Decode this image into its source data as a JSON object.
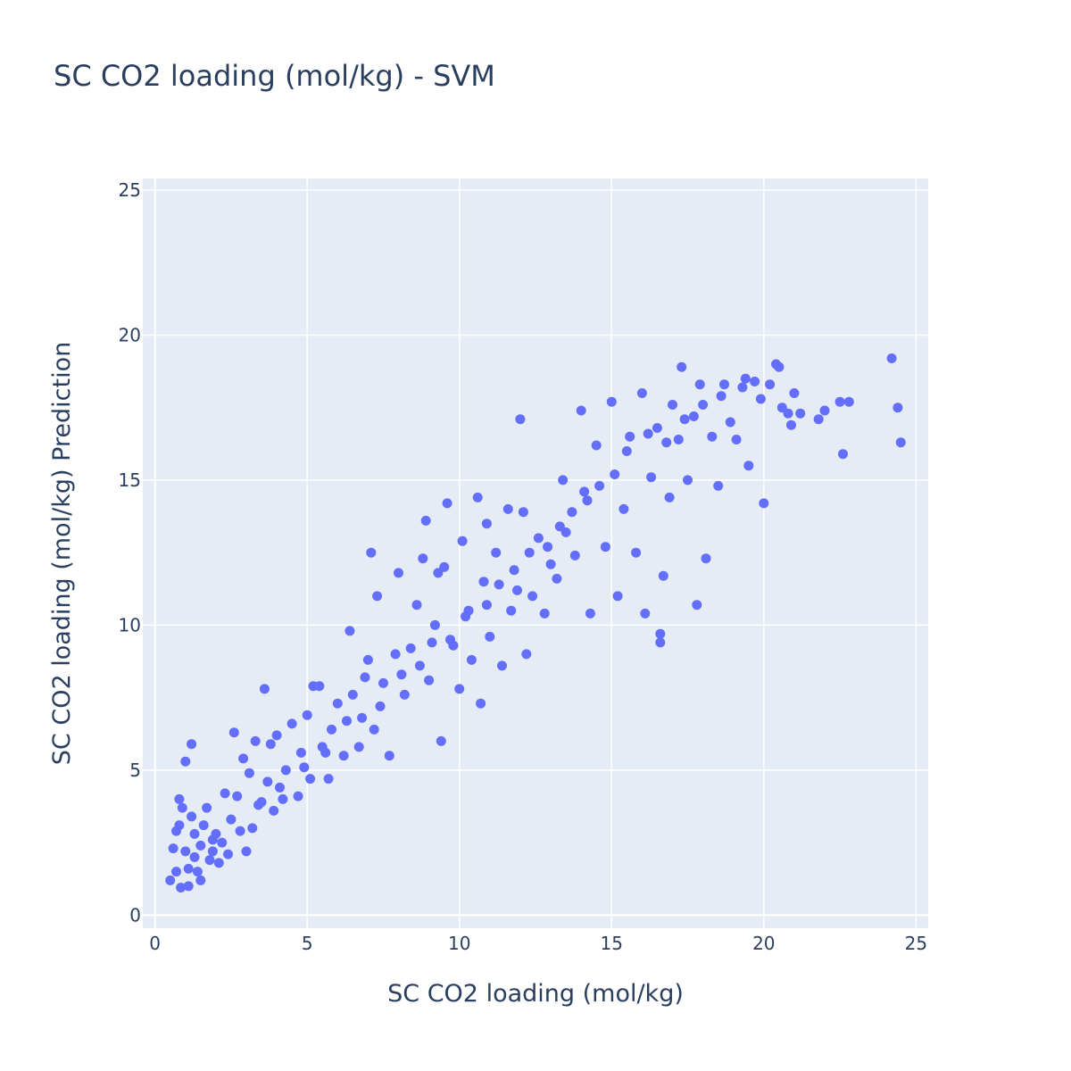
{
  "chart_data": {
    "type": "scatter",
    "title": "SC CO2 loading (mol/kg) - SVM",
    "xlabel": "SC CO2 loading (mol/kg)",
    "ylabel": "SC CO2 loading (mol/kg) Prediction",
    "xlim": [
      -0.4,
      25.4
    ],
    "ylim": [
      -0.45,
      25.4
    ],
    "x_ticks": [
      0,
      5,
      10,
      15,
      20,
      25
    ],
    "y_ticks": [
      0,
      5,
      10,
      15,
      20,
      25
    ],
    "grid": true,
    "legend": "none",
    "marker_color": "#636efa",
    "plot_background": "#e5ecf6",
    "series": [
      {
        "points": [
          [
            0.5,
            1.2
          ],
          [
            0.6,
            2.3
          ],
          [
            0.7,
            1.5
          ],
          [
            0.7,
            2.9
          ],
          [
            0.8,
            3.1
          ],
          [
            0.8,
            4.0
          ],
          [
            0.9,
            3.7
          ],
          [
            0.85,
            0.95
          ],
          [
            1.0,
            5.3
          ],
          [
            1.0,
            2.2
          ],
          [
            1.1,
            1.0
          ],
          [
            1.1,
            1.6
          ],
          [
            1.2,
            3.4
          ],
          [
            1.2,
            5.9
          ],
          [
            1.3,
            2.8
          ],
          [
            1.4,
            1.5
          ],
          [
            1.5,
            2.4
          ],
          [
            1.6,
            3.1
          ],
          [
            1.7,
            3.7
          ],
          [
            1.8,
            1.9
          ],
          [
            1.9,
            2.6
          ],
          [
            2.0,
            2.8
          ],
          [
            2.1,
            1.8
          ],
          [
            2.3,
            4.2
          ],
          [
            2.4,
            2.1
          ],
          [
            2.5,
            3.3
          ],
          [
            2.6,
            6.3
          ],
          [
            2.7,
            4.1
          ],
          [
            2.9,
            5.4
          ],
          [
            3.0,
            2.2
          ],
          [
            3.1,
            4.9
          ],
          [
            3.2,
            3.0
          ],
          [
            3.3,
            6.0
          ],
          [
            3.4,
            3.8
          ],
          [
            3.6,
            7.8
          ],
          [
            3.7,
            4.6
          ],
          [
            3.8,
            5.9
          ],
          [
            3.9,
            3.6
          ],
          [
            4.0,
            6.2
          ],
          [
            4.1,
            4.4
          ],
          [
            4.3,
            5.0
          ],
          [
            4.5,
            6.6
          ],
          [
            4.7,
            4.1
          ],
          [
            4.8,
            5.6
          ],
          [
            5.0,
            6.9
          ],
          [
            5.1,
            4.7
          ],
          [
            5.2,
            7.9
          ],
          [
            5.4,
            7.9
          ],
          [
            5.5,
            5.8
          ],
          [
            5.7,
            4.7
          ],
          [
            5.8,
            6.4
          ],
          [
            6.0,
            7.3
          ],
          [
            6.2,
            5.5
          ],
          [
            6.4,
            9.8
          ],
          [
            6.5,
            7.6
          ],
          [
            6.7,
            5.8
          ],
          [
            6.9,
            8.2
          ],
          [
            7.0,
            8.8
          ],
          [
            7.1,
            12.5
          ],
          [
            7.2,
            6.4
          ],
          [
            7.3,
            11.0
          ],
          [
            7.5,
            8.0
          ],
          [
            7.7,
            5.5
          ],
          [
            7.9,
            9.0
          ],
          [
            8.0,
            11.8
          ],
          [
            8.2,
            7.6
          ],
          [
            8.4,
            9.2
          ],
          [
            8.6,
            10.7
          ],
          [
            8.8,
            12.3
          ],
          [
            8.9,
            13.6
          ],
          [
            9.0,
            8.1
          ],
          [
            9.2,
            10.0
          ],
          [
            9.3,
            11.8
          ],
          [
            9.4,
            6.0
          ],
          [
            9.5,
            12.0
          ],
          [
            9.6,
            14.2
          ],
          [
            9.8,
            9.3
          ],
          [
            10.0,
            7.8
          ],
          [
            10.1,
            12.9
          ],
          [
            10.3,
            10.5
          ],
          [
            10.4,
            8.8
          ],
          [
            10.6,
            14.4
          ],
          [
            10.7,
            7.3
          ],
          [
            10.8,
            11.5
          ],
          [
            10.9,
            13.5
          ],
          [
            11.0,
            9.6
          ],
          [
            11.2,
            12.5
          ],
          [
            11.4,
            8.6
          ],
          [
            11.6,
            14.0
          ],
          [
            11.7,
            10.5
          ],
          [
            11.9,
            11.2
          ],
          [
            12.0,
            17.1
          ],
          [
            12.1,
            13.9
          ],
          [
            12.2,
            9.0
          ],
          [
            12.4,
            11.0
          ],
          [
            12.6,
            13.0
          ],
          [
            12.8,
            10.4
          ],
          [
            13.0,
            12.1
          ],
          [
            13.2,
            11.6
          ],
          [
            13.4,
            15.0
          ],
          [
            13.5,
            13.2
          ],
          [
            13.8,
            12.4
          ],
          [
            14.0,
            17.4
          ],
          [
            14.2,
            14.3
          ],
          [
            14.3,
            10.4
          ],
          [
            14.5,
            16.2
          ],
          [
            14.8,
            12.7
          ],
          [
            15.0,
            17.7
          ],
          [
            15.2,
            11.0
          ],
          [
            15.4,
            14.0
          ],
          [
            15.6,
            16.5
          ],
          [
            15.8,
            12.5
          ],
          [
            16.0,
            18.0
          ],
          [
            16.1,
            10.4
          ],
          [
            16.3,
            15.1
          ],
          [
            16.5,
            16.8
          ],
          [
            16.6,
            9.4
          ],
          [
            16.6,
            9.7
          ],
          [
            16.7,
            11.7
          ],
          [
            16.9,
            14.4
          ],
          [
            17.0,
            17.6
          ],
          [
            17.2,
            16.4
          ],
          [
            17.3,
            18.9
          ],
          [
            17.5,
            15.0
          ],
          [
            17.7,
            17.2
          ],
          [
            17.8,
            10.7
          ],
          [
            17.9,
            18.3
          ],
          [
            18.1,
            12.3
          ],
          [
            18.3,
            16.5
          ],
          [
            18.5,
            14.8
          ],
          [
            18.7,
            18.3
          ],
          [
            18.9,
            17.0
          ],
          [
            19.1,
            16.4
          ],
          [
            19.3,
            18.2
          ],
          [
            19.5,
            15.5
          ],
          [
            19.7,
            18.4
          ],
          [
            19.9,
            17.8
          ],
          [
            20.0,
            14.2
          ],
          [
            20.2,
            18.3
          ],
          [
            20.4,
            19.0
          ],
          [
            20.6,
            17.5
          ],
          [
            20.8,
            17.3
          ],
          [
            20.9,
            16.9
          ],
          [
            21.2,
            17.3
          ],
          [
            21.8,
            17.1
          ],
          [
            22.0,
            17.4
          ],
          [
            22.5,
            17.7
          ],
          [
            22.6,
            15.9
          ],
          [
            22.8,
            17.7
          ],
          [
            24.2,
            19.2
          ],
          [
            24.4,
            17.5
          ],
          [
            24.5,
            16.3
          ],
          [
            1.3,
            2.0
          ],
          [
            1.5,
            1.2
          ],
          [
            1.9,
            2.2
          ],
          [
            2.2,
            2.5
          ],
          [
            2.8,
            2.9
          ],
          [
            3.5,
            3.9
          ],
          [
            4.2,
            4.0
          ],
          [
            4.9,
            5.1
          ],
          [
            5.6,
            5.6
          ],
          [
            6.3,
            6.7
          ],
          [
            6.8,
            6.8
          ],
          [
            7.4,
            7.2
          ],
          [
            8.1,
            8.3
          ],
          [
            8.7,
            8.6
          ],
          [
            9.1,
            9.4
          ],
          [
            9.7,
            9.5
          ],
          [
            10.2,
            10.3
          ],
          [
            10.9,
            10.7
          ],
          [
            11.3,
            11.4
          ],
          [
            11.8,
            11.9
          ],
          [
            12.3,
            12.5
          ],
          [
            12.9,
            12.7
          ],
          [
            13.3,
            13.4
          ],
          [
            13.7,
            13.9
          ],
          [
            14.1,
            14.6
          ],
          [
            14.6,
            14.8
          ],
          [
            15.1,
            15.2
          ],
          [
            15.5,
            16.0
          ],
          [
            16.2,
            16.6
          ],
          [
            16.8,
            16.3
          ],
          [
            17.4,
            17.1
          ],
          [
            18.0,
            17.6
          ],
          [
            18.6,
            17.9
          ],
          [
            19.4,
            18.5
          ],
          [
            20.5,
            18.9
          ],
          [
            21.0,
            18.0
          ]
        ]
      }
    ]
  }
}
